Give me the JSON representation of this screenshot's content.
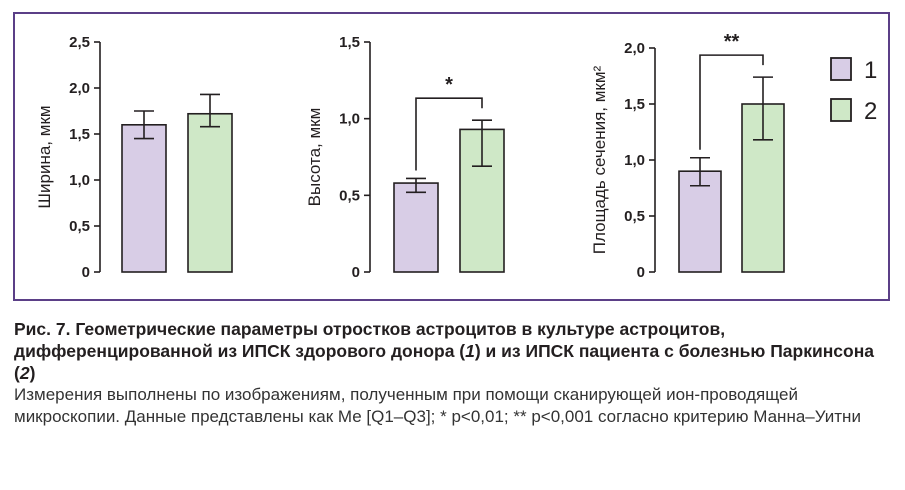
{
  "colors": {
    "frame": "#5b3f87",
    "group1_fill": "#d8cde6",
    "group2_fill": "#cfe8c7",
    "stroke": "#231f20"
  },
  "legend": {
    "items": [
      {
        "key": "1",
        "color": "#d8cde6"
      },
      {
        "key": "2",
        "color": "#cfe8c7"
      }
    ]
  },
  "chart_data": [
    {
      "type": "bar",
      "ylabel": "Ширина, мкм",
      "categories": [
        "1",
        "2"
      ],
      "series": [
        {
          "values": [
            1.6,
            1.72
          ]
        }
      ],
      "errors_low": [
        1.45,
        1.58
      ],
      "errors_high": [
        1.75,
        1.93
      ],
      "ylim": [
        0,
        2.5
      ],
      "yticks": [
        0,
        0.5,
        1.0,
        1.5,
        2.0,
        2.5
      ],
      "ytick_labels": [
        "0",
        "0,5",
        "1,0",
        "1,5",
        "2,0",
        "2,5"
      ],
      "significance": ""
    },
    {
      "type": "bar",
      "ylabel": "Высота, мкм",
      "categories": [
        "1",
        "2"
      ],
      "series": [
        {
          "values": [
            0.58,
            0.93
          ]
        }
      ],
      "errors_low": [
        0.52,
        0.69
      ],
      "errors_high": [
        0.61,
        0.99
      ],
      "ylim": [
        0,
        1.5
      ],
      "yticks": [
        0,
        0.5,
        1.0,
        1.5
      ],
      "ytick_labels": [
        "0",
        "0,5",
        "1,0",
        "1,5"
      ],
      "significance": "*"
    },
    {
      "type": "bar",
      "ylabel": "Площадь сечения, мкм²",
      "categories": [
        "1",
        "2"
      ],
      "series": [
        {
          "values": [
            0.9,
            1.5
          ]
        }
      ],
      "errors_low": [
        0.77,
        1.18
      ],
      "errors_high": [
        1.02,
        1.74
      ],
      "ylim": [
        0,
        2.0
      ],
      "yticks": [
        0,
        0.5,
        1.0,
        1.5,
        2.0
      ],
      "ytick_labels": [
        "0",
        "0,5",
        "1,0",
        "1,5",
        "2,0"
      ],
      "significance": "**"
    }
  ],
  "caption": {
    "label": "Рис. 7.",
    "title_part1": "Геометрические параметры отростков астроцитов в культуре астроцитов, дифференцированной из ИПСК здорового донора (",
    "title_num1": "1",
    "title_part2": ") и из ИПСК пациента с болезнью Паркинсона (",
    "title_num2": "2",
    "title_part3": ")",
    "body": "Измерения выполнены по изображениям, полученным при помощи сканирующей ион-проводящей микроскопии. Данные представлены как Ме [Q1–Q3]; * p<0,01; ** p<0,001 согласно критерию Манна–Уитни"
  }
}
